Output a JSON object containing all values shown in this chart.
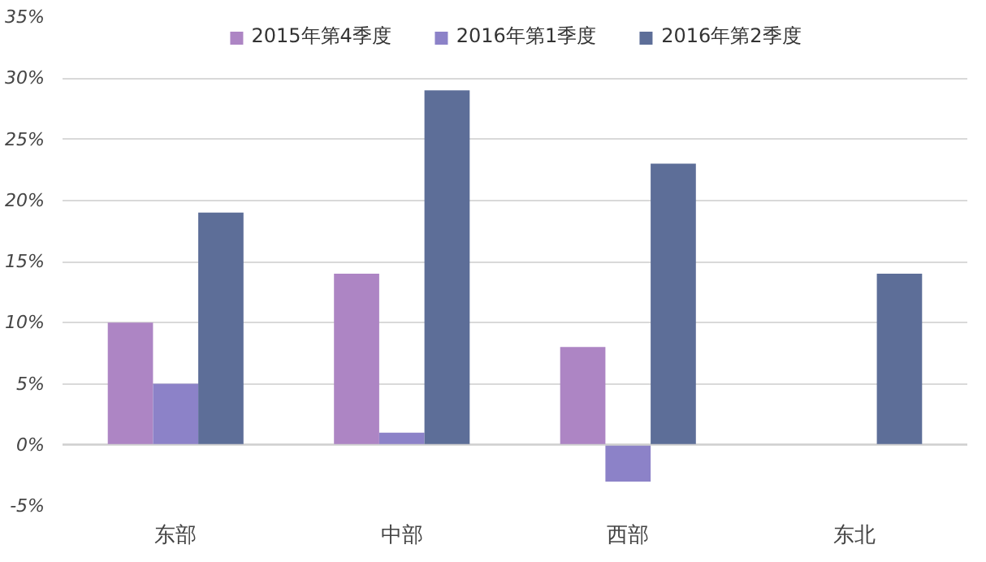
{
  "chart_data": {
    "type": "bar",
    "categories": [
      "东部",
      "中部",
      "西部",
      "东北"
    ],
    "series": [
      {
        "name": "2015年第4季度",
        "color": "#ad85c4",
        "values": [
          10,
          14,
          8,
          null
        ]
      },
      {
        "name": "2016年第1季度",
        "color": "#8c82c8",
        "values": [
          5,
          1,
          -3,
          null
        ]
      },
      {
        "name": "2016年第2季度",
        "color": "#5d6e98",
        "values": [
          19,
          29,
          23,
          14
        ]
      }
    ],
    "ylim": [
      -5,
      35
    ],
    "yticks": [
      {
        "value": -5,
        "label": "-5%"
      },
      {
        "value": 0,
        "label": "0%"
      },
      {
        "value": 5,
        "label": "5%"
      },
      {
        "value": 10,
        "label": "10%"
      },
      {
        "value": 15,
        "label": "15%"
      },
      {
        "value": 20,
        "label": "20%"
      },
      {
        "value": 25,
        "label": "25%"
      },
      {
        "value": 30,
        "label": "30%"
      },
      {
        "value": 35,
        "label": "35%"
      }
    ],
    "grid": "y",
    "legend": "top"
  }
}
